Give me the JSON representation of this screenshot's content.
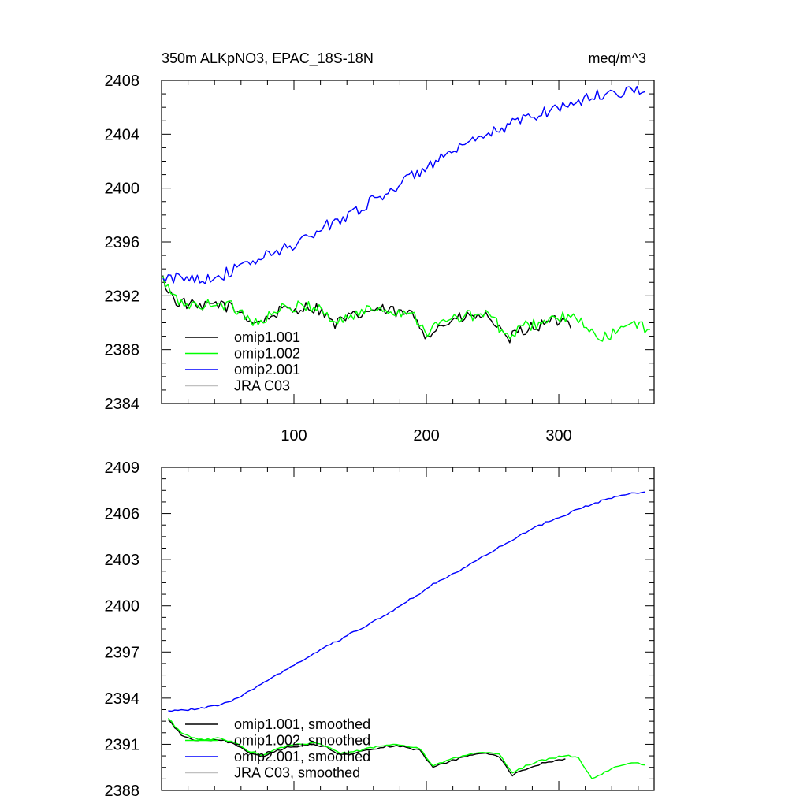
{
  "chart_data": [
    {
      "type": "line",
      "title": "350m ALKpNO3, EPAC_18S-18N",
      "units": "meq/m^3",
      "xlim": [
        0,
        372
      ],
      "ylim": [
        2384,
        2408
      ],
      "xticks": [
        100,
        200,
        300
      ],
      "xtick_labels": [
        "100",
        "200",
        "300"
      ],
      "yticks": [
        2384,
        2388,
        2392,
        2396,
        2400,
        2404,
        2408
      ],
      "ytick_labels": [
        "2384",
        "2388",
        "2392",
        "2396",
        "2400",
        "2404",
        "2408"
      ],
      "legend": "bottom-left",
      "series": [
        {
          "name": "omip1.001",
          "color": "#000000",
          "x": [
            1,
            10,
            20,
            30,
            40,
            50,
            60,
            70,
            80,
            90,
            100,
            110,
            120,
            130,
            140,
            150,
            160,
            170,
            180,
            190,
            200,
            210,
            220,
            230,
            240,
            250,
            260,
            270,
            280,
            290,
            300,
            310
          ],
          "y": [
            2393.2,
            2391.6,
            2391.4,
            2391.0,
            2391.5,
            2391.2,
            2390.8,
            2390.0,
            2390.3,
            2390.9,
            2391.0,
            2391.2,
            2391.0,
            2389.9,
            2390.3,
            2390.6,
            2391.0,
            2390.9,
            2390.7,
            2390.6,
            2389.1,
            2389.7,
            2390.2,
            2390.4,
            2390.5,
            2390.3,
            2388.6,
            2389.3,
            2389.7,
            2389.9,
            2390.2,
            2390.0
          ]
        },
        {
          "name": "omip1.002",
          "color": "#00ff00",
          "x": [
            1,
            10,
            20,
            30,
            40,
            50,
            60,
            70,
            80,
            90,
            100,
            110,
            120,
            130,
            140,
            150,
            160,
            170,
            180,
            190,
            200,
            210,
            220,
            230,
            240,
            250,
            260,
            270,
            280,
            290,
            300,
            310,
            320,
            330,
            340,
            350,
            360,
            370
          ],
          "y": [
            2393.2,
            2391.7,
            2391.4,
            2391.1,
            2391.6,
            2391.3,
            2390.9,
            2390.0,
            2390.4,
            2391.0,
            2391.1,
            2391.3,
            2391.1,
            2390.0,
            2390.4,
            2390.7,
            2391.1,
            2391.0,
            2390.8,
            2390.7,
            2389.3,
            2389.9,
            2390.3,
            2390.5,
            2390.6,
            2390.5,
            2388.8,
            2389.5,
            2389.9,
            2390.1,
            2390.4,
            2390.3,
            2389.9,
            2388.6,
            2389.2,
            2389.6,
            2389.8,
            2389.6
          ]
        },
        {
          "name": "omip2.001",
          "color": "#0000ff",
          "x": [
            1,
            10,
            20,
            30,
            40,
            50,
            60,
            70,
            80,
            90,
            100,
            110,
            120,
            130,
            140,
            150,
            160,
            170,
            180,
            190,
            200,
            210,
            220,
            230,
            240,
            250,
            260,
            270,
            280,
            290,
            300,
            310,
            320,
            330,
            340,
            350,
            360,
            366
          ],
          "y": [
            2393.1,
            2393.3,
            2393.4,
            2393.3,
            2393.4,
            2393.7,
            2394.1,
            2394.6,
            2395.0,
            2395.4,
            2395.8,
            2396.3,
            2396.9,
            2397.5,
            2398.0,
            2398.5,
            2399.1,
            2399.7,
            2400.3,
            2400.9,
            2401.6,
            2402.1,
            2402.6,
            2403.1,
            2403.6,
            2404.1,
            2404.6,
            2405.0,
            2405.4,
            2405.7,
            2406.0,
            2406.3,
            2406.6,
            2406.9,
            2407.1,
            2407.2,
            2407.3,
            2407.3
          ]
        },
        {
          "name": "JRA C03",
          "color": "#c0c0c0",
          "x": [],
          "y": []
        }
      ]
    },
    {
      "type": "line",
      "title": "",
      "xlim": [
        0,
        372
      ],
      "ylim": [
        2388,
        2409
      ],
      "xticks": [
        100,
        200,
        300
      ],
      "xtick_labels": [],
      "yticks": [
        2388,
        2391,
        2394,
        2397,
        2400,
        2403,
        2406,
        2409
      ],
      "ytick_labels": [
        "2388",
        "2391",
        "2394",
        "2397",
        "2400",
        "2403",
        "2406",
        "2409"
      ],
      "legend": "bottom-left",
      "series": [
        {
          "name": "omip1.001, smoothed",
          "color": "#000000",
          "x": [
            5,
            15,
            25,
            35,
            45,
            55,
            65,
            75,
            85,
            95,
            105,
            115,
            125,
            135,
            145,
            155,
            165,
            175,
            185,
            195,
            205,
            215,
            225,
            235,
            245,
            255,
            265,
            275,
            285,
            295,
            305
          ],
          "y": [
            2392.6,
            2391.6,
            2391.3,
            2391.2,
            2391.3,
            2391.0,
            2390.5,
            2390.2,
            2390.5,
            2390.8,
            2390.9,
            2391.0,
            2390.8,
            2390.3,
            2390.4,
            2390.6,
            2390.8,
            2390.9,
            2390.8,
            2390.6,
            2389.5,
            2389.8,
            2390.1,
            2390.3,
            2390.4,
            2390.2,
            2389.0,
            2389.4,
            2389.7,
            2389.9,
            2390.0
          ]
        },
        {
          "name": "omip1.002, smoothed",
          "color": "#00ff00",
          "x": [
            5,
            15,
            25,
            35,
            45,
            55,
            65,
            75,
            85,
            95,
            105,
            115,
            125,
            135,
            145,
            155,
            165,
            175,
            185,
            195,
            205,
            215,
            225,
            235,
            245,
            255,
            265,
            275,
            285,
            295,
            305,
            315,
            325,
            335,
            345,
            355,
            365
          ],
          "y": [
            2392.7,
            2391.7,
            2391.4,
            2391.3,
            2391.4,
            2391.1,
            2390.6,
            2390.3,
            2390.6,
            2390.9,
            2391.0,
            2391.1,
            2390.9,
            2390.4,
            2390.5,
            2390.7,
            2390.9,
            2391.0,
            2390.9,
            2390.7,
            2389.6,
            2389.9,
            2390.2,
            2390.4,
            2390.5,
            2390.4,
            2389.1,
            2389.6,
            2389.9,
            2390.1,
            2390.3,
            2390.1,
            2388.8,
            2389.2,
            2389.6,
            2389.8,
            2389.7
          ]
        },
        {
          "name": "omip2.001, smoothed",
          "color": "#0000ff",
          "x": [
            5,
            15,
            25,
            35,
            45,
            55,
            65,
            75,
            85,
            95,
            105,
            115,
            125,
            135,
            145,
            155,
            165,
            175,
            185,
            195,
            205,
            215,
            225,
            235,
            245,
            255,
            265,
            275,
            285,
            295,
            305,
            315,
            325,
            335,
            345,
            355,
            365
          ],
          "y": [
            2393.2,
            2393.2,
            2393.3,
            2393.4,
            2393.6,
            2393.9,
            2394.4,
            2394.9,
            2395.4,
            2395.9,
            2396.4,
            2396.9,
            2397.4,
            2397.8,
            2398.3,
            2398.7,
            2399.2,
            2399.7,
            2400.3,
            2400.8,
            2401.4,
            2401.8,
            2402.3,
            2402.8,
            2403.3,
            2403.8,
            2404.3,
            2404.8,
            2405.2,
            2405.6,
            2405.9,
            2406.3,
            2406.6,
            2406.9,
            2407.1,
            2407.3,
            2407.4
          ]
        },
        {
          "name": "JRA C03, smoothed",
          "color": "#c0c0c0",
          "x": [],
          "y": []
        }
      ]
    }
  ]
}
